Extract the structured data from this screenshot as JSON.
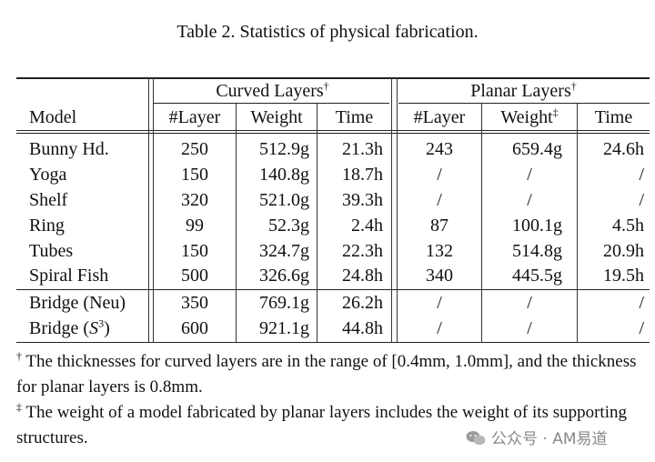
{
  "caption": "Table 2.  Statistics of physical fabrication.",
  "header": {
    "model": "Model",
    "curved_group": "Curved Layers",
    "curved_mark": "†",
    "planar_group": "Planar Layers",
    "planar_mark": "†",
    "layer": "#Layer",
    "weight": "Weight",
    "time": "Time",
    "planar_weight_mark": "‡"
  },
  "rows": [
    {
      "model": "Bunny Hd.",
      "c_layer": "250",
      "c_weight": "512.9g",
      "c_time": "21.3h",
      "p_layer": "243",
      "p_weight": "659.4g",
      "p_time": "24.6h"
    },
    {
      "model": "Yoga",
      "c_layer": "150",
      "c_weight": "140.8g",
      "c_time": "18.7h",
      "p_layer": "/",
      "p_weight": "/",
      "p_time": "/"
    },
    {
      "model": "Shelf",
      "c_layer": "320",
      "c_weight": "521.0g",
      "c_time": "39.3h",
      "p_layer": "/",
      "p_weight": "/",
      "p_time": "/"
    },
    {
      "model": "Ring",
      "c_layer": "99",
      "c_weight": "52.3g",
      "c_time": "2.4h",
      "p_layer": "87",
      "p_weight": "100.1g",
      "p_time": "4.5h"
    },
    {
      "model": "Tubes",
      "c_layer": "150",
      "c_weight": "324.7g",
      "c_time": "22.3h",
      "p_layer": "132",
      "p_weight": "514.8g",
      "p_time": "20.9h"
    },
    {
      "model": "Spiral Fish",
      "c_layer": "500",
      "c_weight": "326.6g",
      "c_time": "24.8h",
      "p_layer": "340",
      "p_weight": "445.5g",
      "p_time": "19.5h"
    },
    {
      "model": "Bridge (Neu)",
      "c_layer": "350",
      "c_weight": "769.1g",
      "c_time": "26.2h",
      "p_layer": "/",
      "p_weight": "/",
      "p_time": "/"
    },
    {
      "model": "Bridge (",
      "model_italic": "S",
      "model_sup": "3",
      "model_tail": ")",
      "c_layer": "600",
      "c_weight": "921.1g",
      "c_time": "44.8h",
      "p_layer": "/",
      "p_weight": "/",
      "p_time": "/"
    }
  ],
  "footnotes": [
    {
      "mark": "†",
      "text": " The thicknesses for curved layers are in the range of [0.4mm, 1.0mm], and the thickness for planar layers is 0.8mm."
    },
    {
      "mark": "‡",
      "text": " The weight of a model fabricated by planar layers includes the weight of its supporting structures."
    }
  ],
  "watermark": "公众号 · AM易道"
}
